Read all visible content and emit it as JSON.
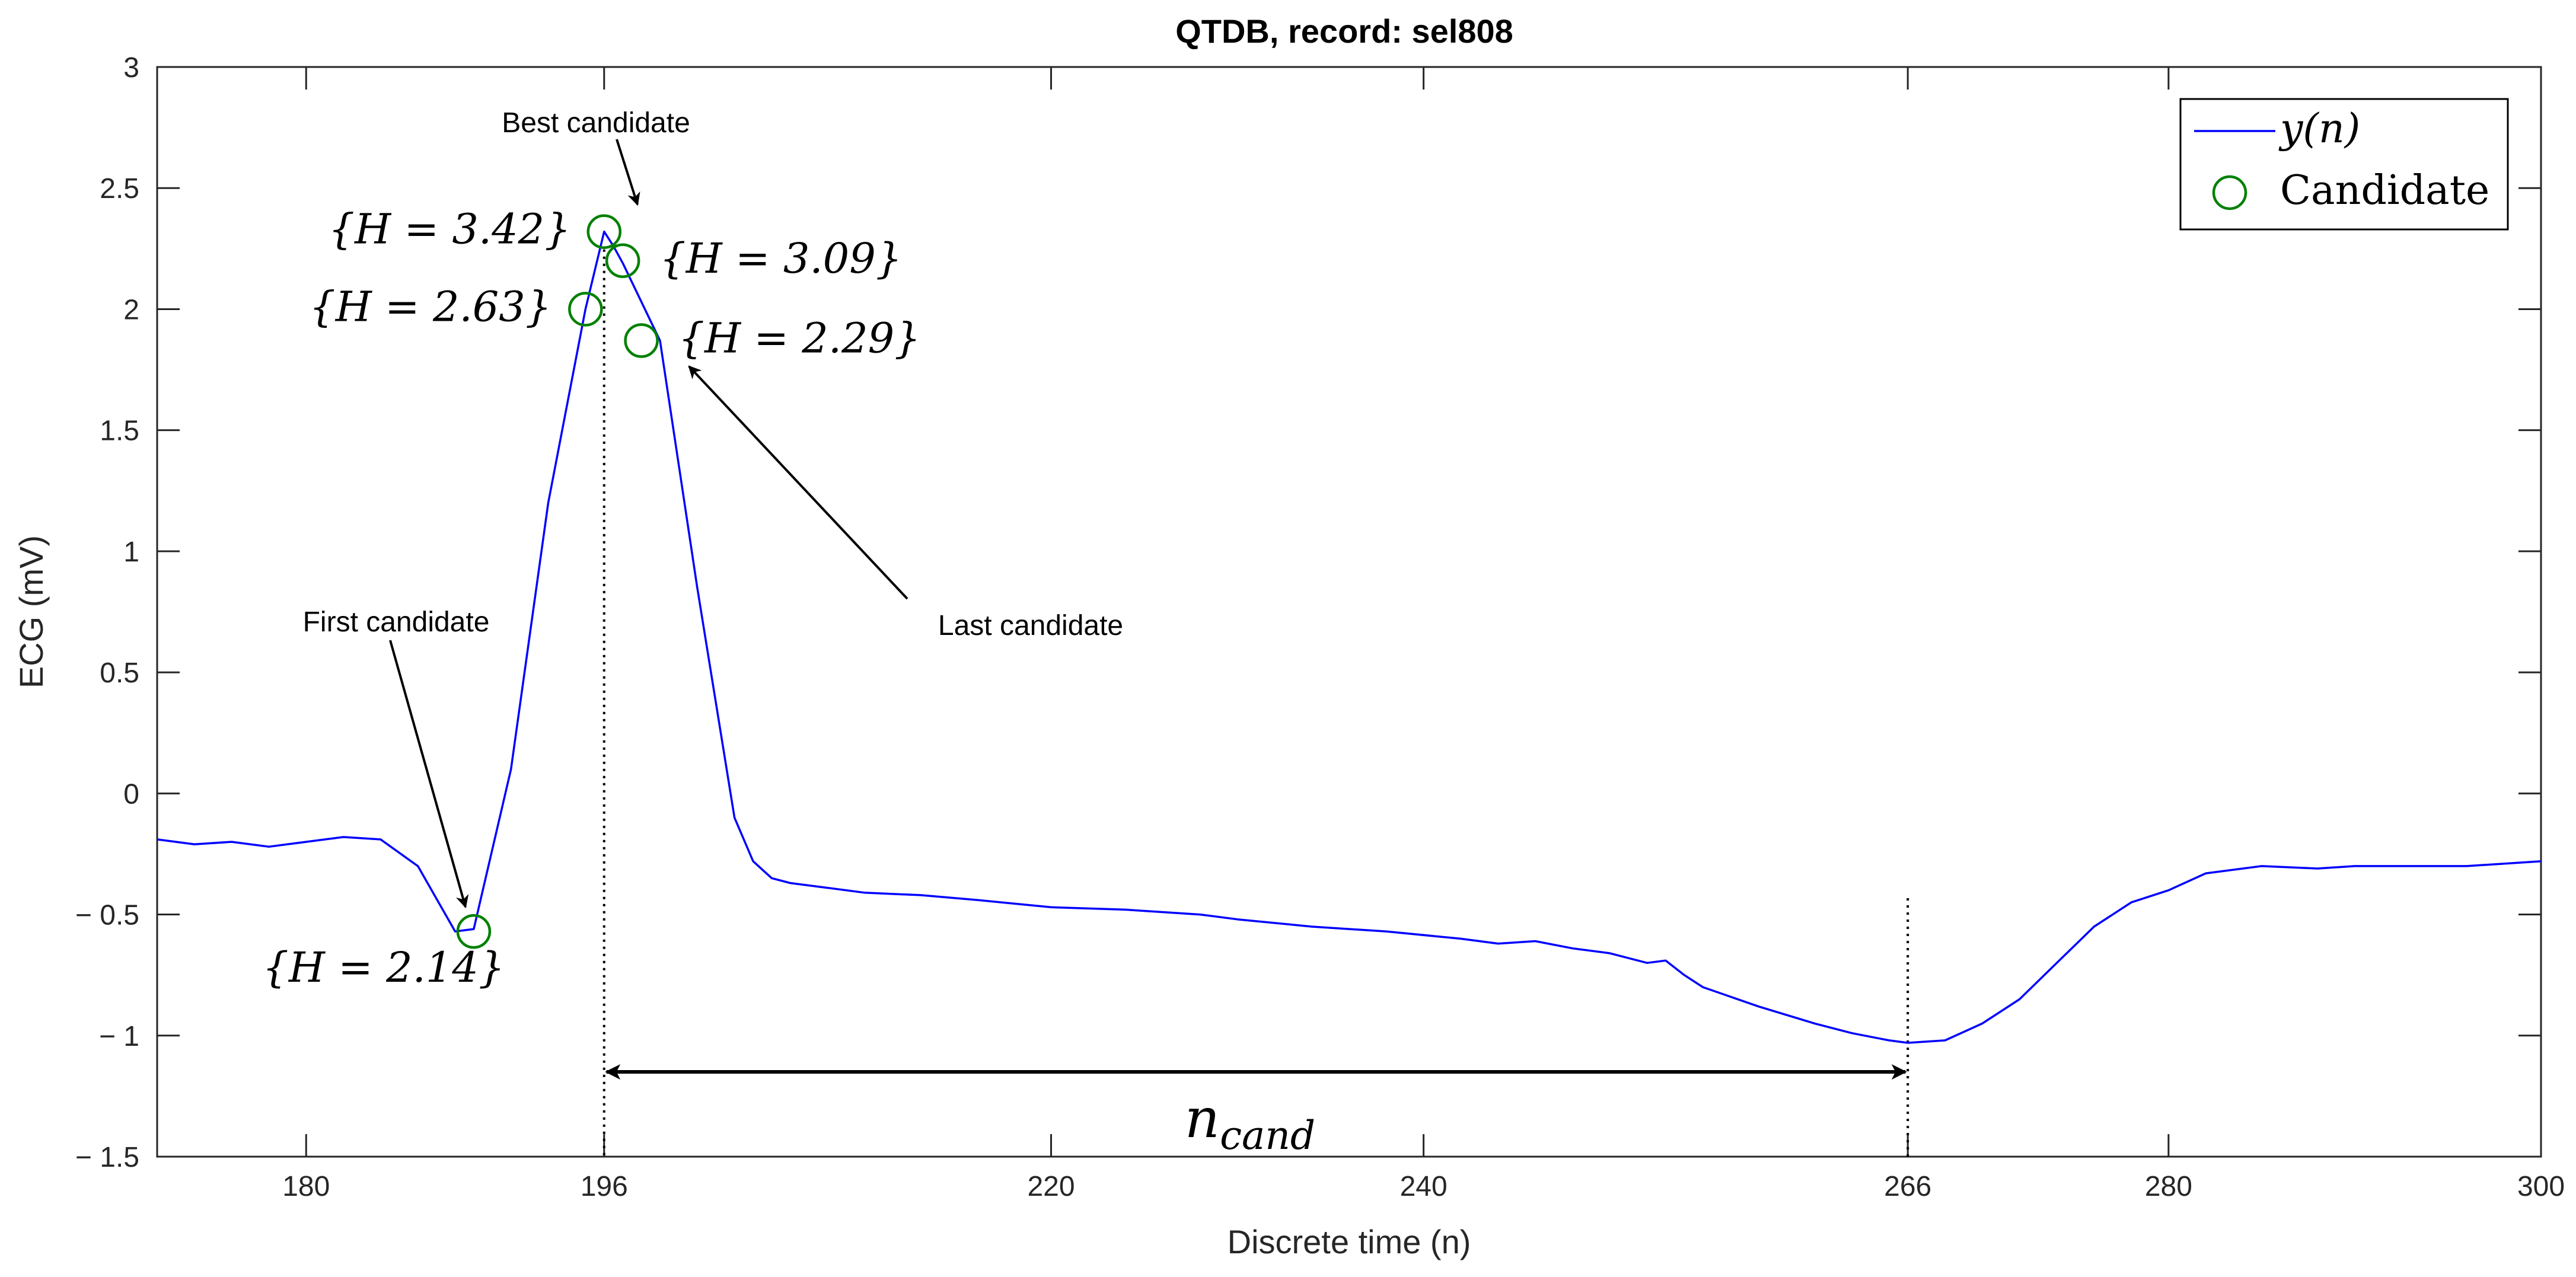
{
  "chart_data": {
    "type": "line",
    "title": "QTDB, record: sel808",
    "xlabel": "Discrete time (n)",
    "ylabel": "ECG (mV)",
    "xlim": [
      172,
      300
    ],
    "ylim": [
      -1.5,
      3
    ],
    "xticks": [
      180,
      196,
      220,
      240,
      266,
      280,
      300
    ],
    "xtick_labels": [
      "180",
      "196",
      "220",
      "240",
      "266",
      "280",
      "300"
    ],
    "yticks": [
      3,
      2.5,
      2,
      1.5,
      1,
      0.5,
      0,
      -0.5,
      -1,
      -1.5
    ],
    "ytick_labels": [
      "3",
      "2.5",
      "2",
      "1.5",
      "1",
      "0.5",
      "0",
      "− 0.5",
      "− 1",
      "− 1.5"
    ],
    "series": [
      {
        "name": "y(n)",
        "color": "#0000ff",
        "x": [
          172,
          174,
          176,
          178,
          180,
          182,
          184,
          186,
          188,
          189,
          191,
          193,
          195,
          196,
          196.5,
          197,
          199,
          201,
          203,
          204,
          205,
          206,
          208,
          210,
          213,
          216,
          220,
          224,
          228,
          230,
          234,
          238,
          242,
          244,
          246,
          248,
          250,
          252,
          253,
          254,
          255,
          258,
          261,
          263,
          265,
          266,
          268,
          270,
          272,
          274,
          276,
          278,
          280,
          282,
          285,
          288,
          290,
          293,
          296,
          300
        ],
        "y": [
          -0.19,
          -0.21,
          -0.2,
          -0.22,
          -0.2,
          -0.18,
          -0.19,
          -0.3,
          -0.57,
          -0.56,
          0.1,
          1.2,
          2.0,
          2.32,
          2.26,
          2.19,
          1.87,
          0.85,
          -0.1,
          -0.28,
          -0.35,
          -0.37,
          -0.39,
          -0.41,
          -0.42,
          -0.44,
          -0.47,
          -0.48,
          -0.5,
          -0.52,
          -0.55,
          -0.57,
          -0.6,
          -0.62,
          -0.61,
          -0.64,
          -0.66,
          -0.7,
          -0.69,
          -0.75,
          -0.8,
          -0.88,
          -0.95,
          -0.99,
          -1.02,
          -1.03,
          -1.02,
          -0.95,
          -0.85,
          -0.7,
          -0.55,
          -0.45,
          -0.4,
          -0.33,
          -0.3,
          -0.31,
          -0.3,
          -0.3,
          -0.3,
          -0.28
        ]
      },
      {
        "name": "Candidate",
        "type": "scatter",
        "marker": "circle",
        "color": "#008000",
        "x": [
          189,
          195,
          196,
          197,
          198
        ],
        "y": [
          -0.57,
          2.0,
          2.32,
          2.2,
          1.87
        ]
      }
    ],
    "legend": {
      "location": "top-right",
      "entries": [
        {
          "label": "y(n)",
          "style": "line",
          "color": "#0000ff"
        },
        {
          "label": "Candidate",
          "style": "circle",
          "color": "#008000"
        }
      ]
    },
    "candidate_labels": [
      {
        "text": "{H = 2.14}",
        "x": 189,
        "y": -0.57
      },
      {
        "text": "{H = 2.63}",
        "x": 195,
        "y": 2.0
      },
      {
        "text": "{H = 3.42}",
        "x": 196,
        "y": 2.32
      },
      {
        "text": "{H = 3.09}",
        "x": 197,
        "y": 2.2
      },
      {
        "text": "{H = 2.29}",
        "x": 198,
        "y": 1.87
      }
    ],
    "annotations": [
      {
        "text": "Best candidate",
        "points_to": [
          196,
          2.32
        ]
      },
      {
        "text": "First candidate",
        "points_to": [
          189,
          -0.57
        ]
      },
      {
        "text": "Last candidate",
        "points_to": [
          198,
          1.87
        ]
      }
    ],
    "vertical_markers": [
      196,
      266
    ],
    "span": {
      "label": "n_cand",
      "base": "n",
      "subscript": "cand",
      "from": 196,
      "to": 266,
      "y": -1.15
    }
  }
}
